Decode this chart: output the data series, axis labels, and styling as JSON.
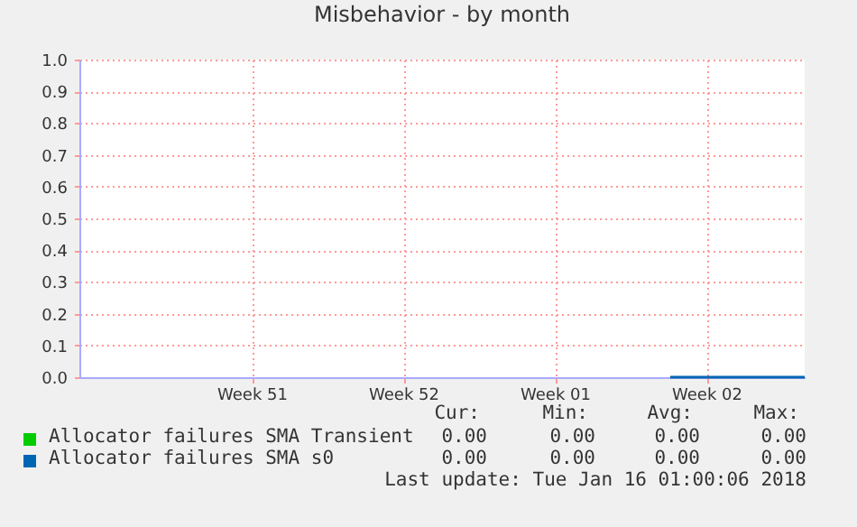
{
  "chart_data": {
    "type": "line",
    "title": "Misbehavior - by month",
    "x": [
      "2018-01-09T20:00",
      "2018-01-16T01:00"
    ],
    "xlim": [
      "2017-12-13T13:00",
      "2018-01-16T01:00"
    ],
    "xticks": [
      {
        "value": "2017-12-21T12:00",
        "label": "Week 51"
      },
      {
        "value": "2017-12-28T12:00",
        "label": "Week 52"
      },
      {
        "value": "2018-01-04T12:00",
        "label": "Week 01"
      },
      {
        "value": "2018-01-11T12:00",
        "label": "Week 02"
      }
    ],
    "ylim": [
      0,
      1
    ],
    "yticks": [
      {
        "value": 0,
        "label": "0.0"
      },
      0.1,
      0.2,
      0.3,
      0.4,
      0.5,
      0.6,
      0.7,
      0.8,
      0.9,
      {
        "value": 1,
        "label": "1.0"
      }
    ],
    "series": [
      {
        "name": "Allocator failures SMA Transient",
        "color": "#00cc00",
        "values": [
          null,
          null
        ]
      },
      {
        "name": "Allocator failures SMA s0",
        "color": "#0066b3",
        "values": [
          0,
          0
        ]
      }
    ],
    "annotations": [
      "Cur:",
      "Min:",
      "Avg:",
      "Max:",
      "0.00",
      "0.00",
      "0.00",
      "0.00",
      "0.00",
      "0.00",
      "0.00",
      "0.00",
      "Last update: Tue Jan 16 01:00:06 2018"
    ],
    "grid": true,
    "legend": "bottom",
    "line_style": "solid",
    "marker": "none"
  }
}
